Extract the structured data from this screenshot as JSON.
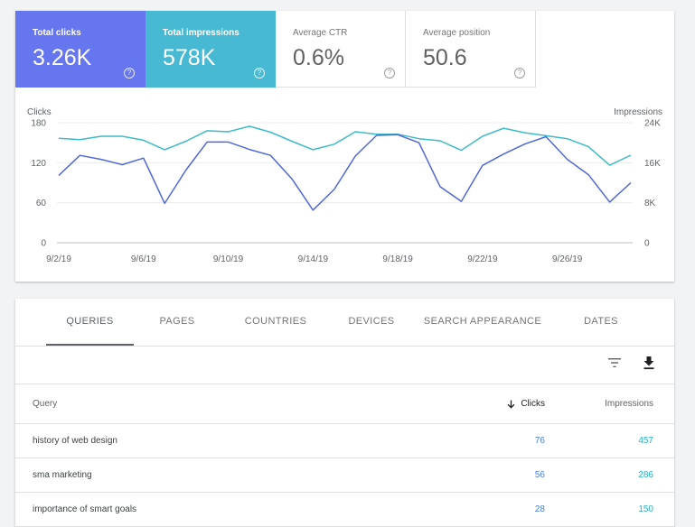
{
  "colors": {
    "clicks": "#6576ef",
    "impressions": "#48b9d3",
    "clicks_line": "#5068dc",
    "impressions_line": "#3dbbc9"
  },
  "metrics": [
    {
      "label": "Total clicks",
      "value": "3.26K",
      "selected": true,
      "help_icon": "help-circle-icon"
    },
    {
      "label": "Total impressions",
      "value": "578K",
      "selected": true,
      "help_icon": "help-circle-icon"
    },
    {
      "label": "Average CTR",
      "value": "0.6%",
      "selected": false,
      "help_icon": "help-circle-icon"
    },
    {
      "label": "Average position",
      "value": "50.6",
      "selected": false,
      "help_icon": "help-circle-icon"
    }
  ],
  "chart_data": {
    "type": "line",
    "left_axis_label": "Clicks",
    "right_axis_label": "Impressions",
    "left_ticks": [
      "180",
      "120",
      "60",
      "0"
    ],
    "right_ticks": [
      "24K",
      "16K",
      "8K",
      "0"
    ],
    "ylim_left": [
      0,
      180
    ],
    "ylim_right": [
      0,
      24000
    ],
    "x_tick_labels": [
      "9/2/19",
      "9/6/19",
      "9/10/19",
      "9/14/19",
      "9/18/19",
      "9/22/19",
      "9/26/19"
    ],
    "x_tick_days": [
      0,
      4,
      8,
      12,
      16,
      20,
      24
    ],
    "grid": true,
    "series": [
      {
        "axis": "left",
        "values": [
          101,
          131,
          125,
          117,
          127,
          59,
          109,
          151,
          151,
          140,
          131,
          96,
          49,
          80,
          130,
          161,
          162,
          150,
          84,
          62,
          116,
          133,
          148,
          159,
          125,
          102,
          61,
          90
        ]
      },
      {
        "axis": "right",
        "values": [
          20900,
          20600,
          21300,
          21300,
          20500,
          18600,
          20300,
          22400,
          22200,
          23300,
          22100,
          20300,
          18600,
          19700,
          22200,
          21700,
          21700,
          20800,
          20400,
          18500,
          21300,
          22900,
          22000,
          21400,
          20800,
          19200,
          15500,
          17500
        ]
      }
    ]
  },
  "tabs": [
    "QUERIES",
    "PAGES",
    "COUNTRIES",
    "DEVICES",
    "SEARCH APPEARANCE",
    "DATES"
  ],
  "toolbar": {
    "filter_icon": "filter-icon",
    "download_icon": "download-icon"
  },
  "table": {
    "headers": {
      "query": "Query",
      "clicks": "Clicks",
      "impressions": "Impressions"
    },
    "rows": [
      {
        "query": "history of web design",
        "clicks": "76",
        "impressions": "457"
      },
      {
        "query": "sma marketing",
        "clicks": "56",
        "impressions": "286"
      },
      {
        "query": "importance of smart goals",
        "clicks": "28",
        "impressions": "150"
      }
    ]
  }
}
